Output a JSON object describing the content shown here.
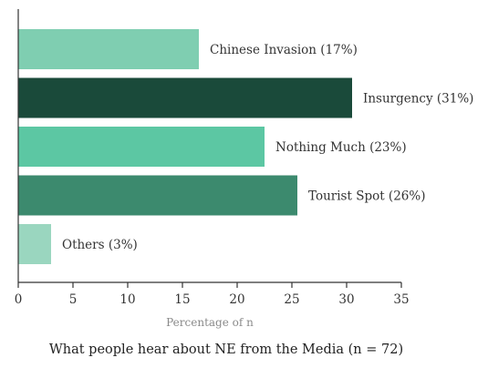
{
  "chart_data": {
    "type": "bar",
    "orientation": "horizontal",
    "categories": [
      "Chinese Invasion",
      "Insurgency",
      "Nothing Much",
      "Tourist Spot",
      "Others"
    ],
    "values": [
      16.5,
      30.5,
      22.5,
      25.5,
      3
    ],
    "data_labels": [
      "Chinese Invasion (17%)",
      "Insurgency (31%)",
      "Nothing Much (23%)",
      "Tourist Spot (26%)",
      "Others (3%)"
    ],
    "colors": [
      "#7fceb1",
      "#1a4a3a",
      "#5cc7a3",
      "#3c8a6e",
      "#9ad6bf"
    ],
    "xticks": [
      0,
      5,
      10,
      15,
      20,
      25,
      30,
      35
    ],
    "xlim": [
      0,
      35
    ],
    "xlabel": "Percentage of n",
    "title": "What people hear about NE from the Media (n = 72)",
    "grid": false
  }
}
